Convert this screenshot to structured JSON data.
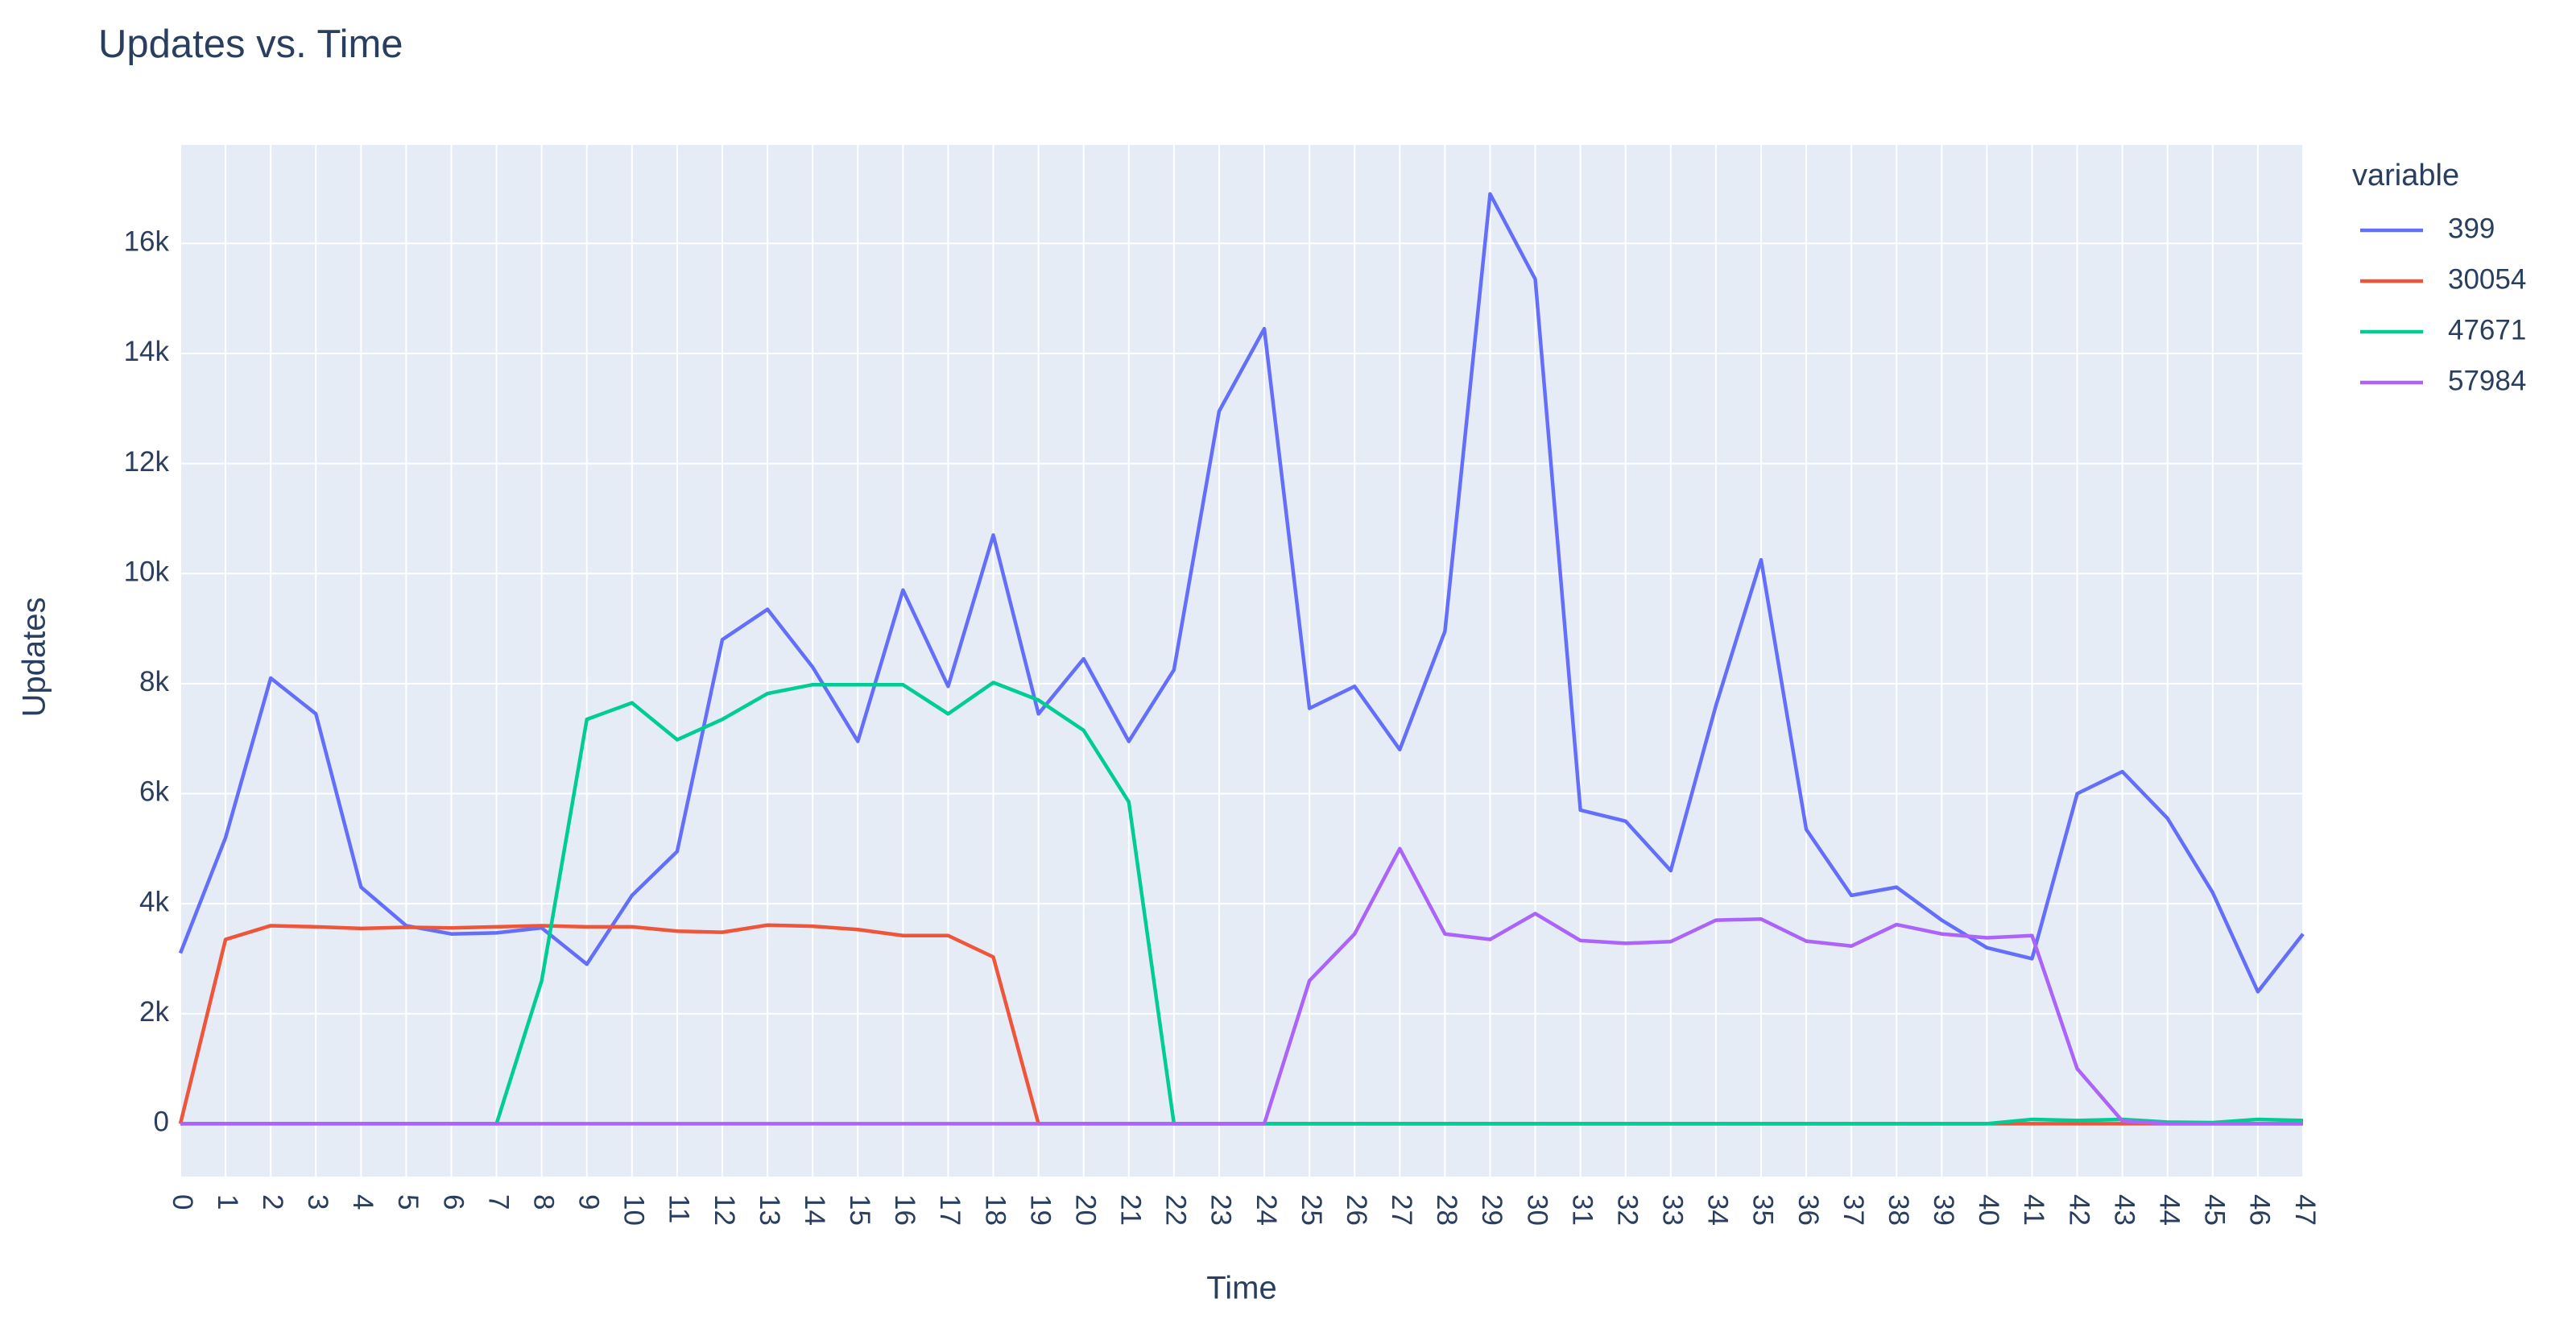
{
  "chart_data": {
    "type": "line",
    "title": "Updates vs. Time",
    "x_label": "Time",
    "y_label": "Updates",
    "legend_title": "variable",
    "legend_position": "right",
    "x": [
      0,
      1,
      2,
      3,
      4,
      5,
      6,
      7,
      8,
      9,
      10,
      11,
      12,
      13,
      14,
      15,
      16,
      17,
      18,
      19,
      20,
      21,
      22,
      23,
      24,
      25,
      26,
      27,
      28,
      29,
      30,
      31,
      32,
      33,
      34,
      35,
      36,
      37,
      38,
      39,
      40,
      41,
      42,
      43,
      44,
      45,
      46,
      47
    ],
    "xlim": [
      0,
      47
    ],
    "xticks": [
      0,
      1,
      2,
      3,
      4,
      5,
      6,
      7,
      8,
      9,
      10,
      11,
      12,
      13,
      14,
      15,
      16,
      17,
      18,
      19,
      20,
      21,
      22,
      23,
      24,
      25,
      26,
      27,
      28,
      29,
      30,
      31,
      32,
      33,
      34,
      35,
      36,
      37,
      38,
      39,
      40,
      41,
      42,
      43,
      44,
      45,
      46,
      47
    ],
    "ylim": [
      -960,
      17790
    ],
    "yticks": [
      0,
      {
        "value": 2000,
        "label": "2k"
      },
      {
        "value": 4000,
        "label": "4k"
      },
      {
        "value": 6000,
        "label": "6k"
      },
      {
        "value": 8000,
        "label": "8k"
      },
      {
        "value": 10000,
        "label": "10k"
      },
      {
        "value": 12000,
        "label": "12k"
      },
      {
        "value": 14000,
        "label": "14k"
      },
      {
        "value": 16000,
        "label": "16k"
      }
    ],
    "grid": true,
    "series": [
      {
        "name": "399",
        "color": "#636efa",
        "values": [
          3100,
          5200,
          8100,
          7450,
          4300,
          3600,
          3450,
          3470,
          3560,
          2900,
          4150,
          4950,
          8800,
          9350,
          8300,
          6950,
          9700,
          7950,
          10700,
          7450,
          8450,
          6950,
          8250,
          12950,
          14450,
          7550,
          7950,
          6800,
          8950,
          16900,
          15350,
          5700,
          5500,
          4600,
          7600,
          10250,
          5350,
          4150,
          4300,
          3700,
          3200,
          3000,
          6000,
          6400,
          5550,
          4200,
          2400,
          3450
        ]
      },
      {
        "name": "30054",
        "color": "#EF553B",
        "values": [
          0,
          3350,
          3600,
          3580,
          3550,
          3570,
          3560,
          3580,
          3600,
          3580,
          3580,
          3500,
          3480,
          3610,
          3590,
          3530,
          3420,
          3420,
          3030,
          0,
          0,
          0,
          0,
          0,
          0,
          0,
          0,
          0,
          0,
          0,
          0,
          0,
          0,
          0,
          0,
          0,
          0,
          0,
          0,
          0,
          0,
          0,
          0,
          0,
          0,
          0,
          0,
          0
        ]
      },
      {
        "name": "47671",
        "color": "#00cc96",
        "values": [
          0,
          0,
          0,
          0,
          0,
          0,
          0,
          0,
          2600,
          7350,
          7650,
          6980,
          7350,
          7820,
          7980,
          7980,
          7980,
          7450,
          8020,
          7700,
          7150,
          5850,
          0,
          0,
          0,
          0,
          0,
          0,
          0,
          0,
          0,
          0,
          0,
          0,
          0,
          0,
          0,
          0,
          0,
          0,
          0,
          80,
          60,
          80,
          30,
          20,
          80,
          60
        ]
      },
      {
        "name": "57984",
        "color": "#ab63fa",
        "values": [
          0,
          0,
          0,
          0,
          0,
          0,
          0,
          0,
          0,
          0,
          0,
          0,
          0,
          0,
          0,
          0,
          0,
          0,
          0,
          0,
          0,
          0,
          0,
          0,
          0,
          2600,
          3450,
          5000,
          3450,
          3350,
          3820,
          3330,
          3280,
          3310,
          3700,
          3720,
          3320,
          3230,
          3620,
          3450,
          3380,
          3420,
          1000,
          50,
          0,
          0,
          0,
          0
        ]
      }
    ]
  }
}
